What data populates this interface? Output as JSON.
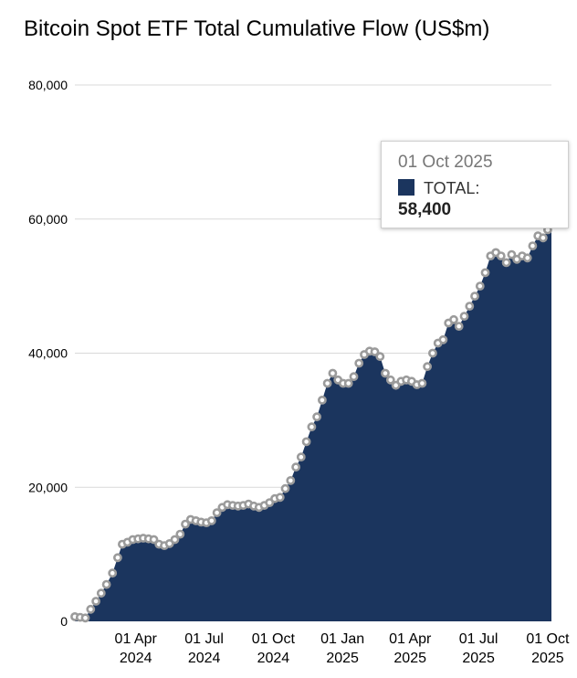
{
  "chart_data": {
    "type": "area",
    "title": "Bitcoin Spot ETF Total Cumulative Flow (US$m)",
    "xlabel": "",
    "ylabel": "",
    "ylim": [
      0,
      80000
    ],
    "y_ticks": [
      0,
      20000,
      40000,
      60000,
      80000
    ],
    "y_tick_labels": [
      "0",
      "20,000",
      "40,000",
      "60,000",
      "80,000"
    ],
    "x_range": [
      "2024-01-11",
      "2025-10-06"
    ],
    "x_ticks": [
      {
        "date": "2024-04-01",
        "line1": "01 Apr",
        "line2": "2024"
      },
      {
        "date": "2024-07-01",
        "line1": "01 Jul",
        "line2": "2024"
      },
      {
        "date": "2024-10-01",
        "line1": "01 Oct",
        "line2": "2024"
      },
      {
        "date": "2025-01-01",
        "line1": "01 Jan",
        "line2": "2025"
      },
      {
        "date": "2025-04-01",
        "line1": "01 Apr",
        "line2": "2025"
      },
      {
        "date": "2025-07-01",
        "line1": "01 Jul",
        "line2": "2025"
      },
      {
        "date": "2025-10-01",
        "line1": "01 Oct",
        "line2": "2025"
      }
    ],
    "grid": true,
    "series": [
      {
        "name": "TOTAL",
        "color": "#1b355e",
        "marker_color": "#9b9b9b",
        "points": [
          [
            "2024-01-11",
            700
          ],
          [
            "2024-01-18",
            600
          ],
          [
            "2024-01-25",
            500
          ],
          [
            "2024-02-01",
            1800
          ],
          [
            "2024-02-08",
            3000
          ],
          [
            "2024-02-15",
            4200
          ],
          [
            "2024-02-22",
            5500
          ],
          [
            "2024-03-01",
            7200
          ],
          [
            "2024-03-08",
            9500
          ],
          [
            "2024-03-14",
            11500
          ],
          [
            "2024-03-21",
            11800
          ],
          [
            "2024-03-28",
            12200
          ],
          [
            "2024-04-04",
            12300
          ],
          [
            "2024-04-11",
            12400
          ],
          [
            "2024-04-18",
            12300
          ],
          [
            "2024-04-25",
            12200
          ],
          [
            "2024-05-02",
            11500
          ],
          [
            "2024-05-09",
            11300
          ],
          [
            "2024-05-16",
            11600
          ],
          [
            "2024-05-23",
            12200
          ],
          [
            "2024-05-30",
            13000
          ],
          [
            "2024-06-06",
            14500
          ],
          [
            "2024-06-13",
            15200
          ],
          [
            "2024-06-20",
            15000
          ],
          [
            "2024-06-27",
            14800
          ],
          [
            "2024-07-04",
            14700
          ],
          [
            "2024-07-11",
            15000
          ],
          [
            "2024-07-18",
            16200
          ],
          [
            "2024-07-25",
            17000
          ],
          [
            "2024-08-01",
            17400
          ],
          [
            "2024-08-08",
            17300
          ],
          [
            "2024-08-15",
            17200
          ],
          [
            "2024-08-22",
            17300
          ],
          [
            "2024-08-29",
            17500
          ],
          [
            "2024-09-05",
            17200
          ],
          [
            "2024-09-12",
            17000
          ],
          [
            "2024-09-19",
            17300
          ],
          [
            "2024-09-26",
            17700
          ],
          [
            "2024-10-03",
            18300
          ],
          [
            "2024-10-10",
            18500
          ],
          [
            "2024-10-17",
            19800
          ],
          [
            "2024-10-24",
            21000
          ],
          [
            "2024-10-31",
            23000
          ],
          [
            "2024-11-07",
            24500
          ],
          [
            "2024-11-14",
            26800
          ],
          [
            "2024-11-21",
            29000
          ],
          [
            "2024-11-28",
            30500
          ],
          [
            "2024-12-05",
            33000
          ],
          [
            "2024-12-12",
            35500
          ],
          [
            "2024-12-19",
            37000
          ],
          [
            "2024-12-26",
            36000
          ],
          [
            "2025-01-02",
            35500
          ],
          [
            "2025-01-09",
            35500
          ],
          [
            "2025-01-16",
            36500
          ],
          [
            "2025-01-23",
            38500
          ],
          [
            "2025-01-30",
            39800
          ],
          [
            "2025-02-06",
            40300
          ],
          [
            "2025-02-13",
            40200
          ],
          [
            "2025-02-20",
            39500
          ],
          [
            "2025-02-27",
            37000
          ],
          [
            "2025-03-06",
            36000
          ],
          [
            "2025-03-13",
            35200
          ],
          [
            "2025-03-20",
            35800
          ],
          [
            "2025-03-27",
            36000
          ],
          [
            "2025-04-03",
            35800
          ],
          [
            "2025-04-10",
            35300
          ],
          [
            "2025-04-17",
            35500
          ],
          [
            "2025-04-24",
            38000
          ],
          [
            "2025-05-01",
            40000
          ],
          [
            "2025-05-08",
            41500
          ],
          [
            "2025-05-15",
            42000
          ],
          [
            "2025-05-22",
            44500
          ],
          [
            "2025-05-29",
            45000
          ],
          [
            "2025-06-05",
            44000
          ],
          [
            "2025-06-12",
            45500
          ],
          [
            "2025-06-19",
            47000
          ],
          [
            "2025-06-26",
            48500
          ],
          [
            "2025-07-03",
            50000
          ],
          [
            "2025-07-10",
            52000
          ],
          [
            "2025-07-17",
            54500
          ],
          [
            "2025-07-24",
            55000
          ],
          [
            "2025-07-31",
            54500
          ],
          [
            "2025-08-07",
            53500
          ],
          [
            "2025-08-14",
            54700
          ],
          [
            "2025-08-21",
            54000
          ],
          [
            "2025-08-28",
            54500
          ],
          [
            "2025-09-04",
            54200
          ],
          [
            "2025-09-11",
            56000
          ],
          [
            "2025-09-18",
            57500
          ],
          [
            "2025-09-25",
            57200
          ],
          [
            "2025-10-01",
            58400
          ],
          [
            "2025-10-06",
            60200
          ]
        ]
      }
    ],
    "tooltip": {
      "date": "01 Oct 2025",
      "series_label": "TOTAL:",
      "value": "58,400"
    }
  }
}
